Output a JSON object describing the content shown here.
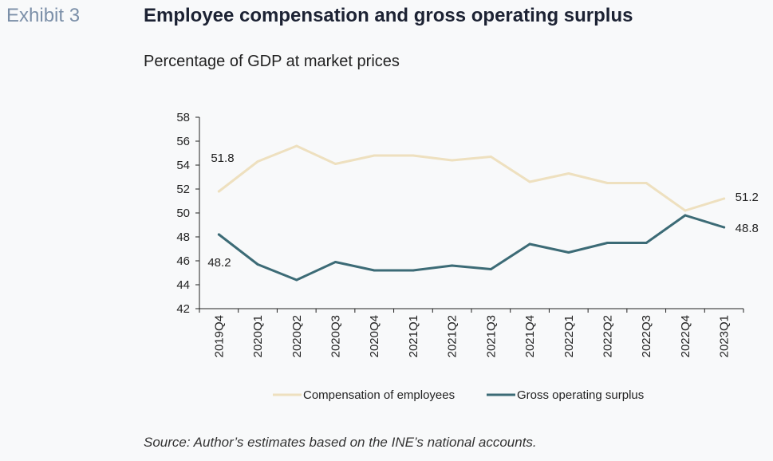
{
  "header": {
    "exhibit_label": "Exhibit 3",
    "title": "Employee compensation and gross operating surplus",
    "subtitle": "Percentage of GDP at market prices"
  },
  "footer": {
    "source": "Source: Author’s estimates based on the INE’s national accounts."
  },
  "chart_data": {
    "type": "line",
    "title": "Employee compensation and gross operating surplus",
    "subtitle": "Percentage of GDP at market prices",
    "categories": [
      "2019Q4",
      "2020Q1",
      "2020Q2",
      "2020Q3",
      "2020Q4",
      "2021Q1",
      "2021Q2",
      "2021Q3",
      "2021Q4",
      "2022Q1",
      "2022Q2",
      "2022Q3",
      "2022Q4",
      "2023Q1"
    ],
    "ylim": [
      42,
      58
    ],
    "yticks": [
      42,
      44,
      46,
      48,
      50,
      52,
      54,
      56,
      58
    ],
    "grid": false,
    "legend_position": "bottom",
    "series": [
      {
        "name": "Compensation of employees",
        "color": "#eee0bf",
        "values": [
          51.8,
          54.3,
          55.6,
          54.1,
          54.8,
          54.8,
          54.4,
          54.7,
          52.6,
          53.3,
          52.5,
          52.5,
          50.2,
          51.2
        ],
        "end_labels": {
          "first": "51.8",
          "last": "51.2"
        }
      },
      {
        "name": "Gross operating surplus",
        "color": "#3c6b76",
        "values": [
          48.2,
          45.7,
          44.4,
          45.9,
          45.2,
          45.2,
          45.6,
          45.3,
          47.4,
          46.7,
          47.5,
          47.5,
          49.8,
          48.8
        ],
        "end_labels": {
          "first": "48.2",
          "last": "48.8"
        }
      }
    ]
  }
}
